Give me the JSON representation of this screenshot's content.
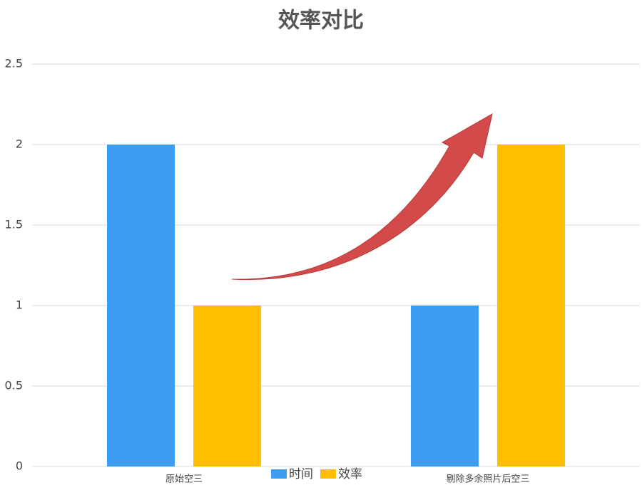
{
  "chart_data": {
    "type": "bar",
    "title": "效率对比",
    "categories": [
      "原始空三",
      "剔除多余照片后空三"
    ],
    "series": [
      {
        "name": "时间",
        "color": "#3d9df5",
        "values": [
          2,
          1
        ]
      },
      {
        "name": "效率",
        "color": "#ffbf00",
        "values": [
          1,
          2
        ]
      }
    ],
    "ylim": [
      0,
      2.5
    ],
    "yticks": [
      0,
      0.5,
      1,
      1.5,
      2,
      2.5
    ],
    "grid": true,
    "legend": "bottom"
  }
}
